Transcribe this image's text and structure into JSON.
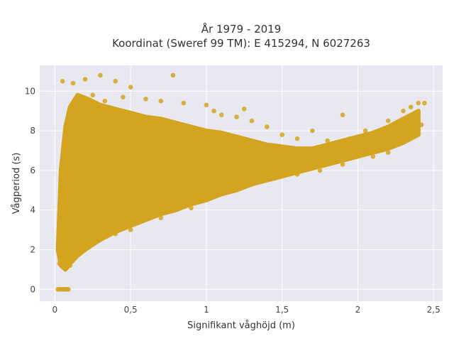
{
  "chart_data": {
    "type": "scatter",
    "title_line1": "År 1979 - 2019",
    "title_line2": "Koordinat (Sweref 99 TM): E 415294, N 6027263",
    "xlabel": "Signifikant våghöjd (m)",
    "ylabel": "Vågperiod (s)",
    "xlim": [
      -0.1,
      2.56
    ],
    "ylim": [
      -0.6,
      11.3
    ],
    "x_ticks": [
      0,
      0.5,
      1,
      1.5,
      2,
      2.5
    ],
    "x_tick_labels": [
      "0",
      "0,5",
      "1",
      "1,5",
      "2",
      "2,5"
    ],
    "y_ticks": [
      0,
      2,
      4,
      6,
      8,
      10
    ],
    "y_tick_labels": [
      "0",
      "2",
      "4",
      "6",
      "8",
      "10"
    ],
    "grid": true,
    "colors": {
      "marker": "#d4a420",
      "plot_bg": "#e8e8f0",
      "grid": "#ffffff"
    },
    "point_cloud_description_free": true,
    "series": [
      {
        "points": [
          [
            0.02,
            0
          ],
          [
            0.03,
            0
          ],
          [
            0.04,
            0
          ],
          [
            0.05,
            0
          ],
          [
            0.06,
            0
          ],
          [
            0.07,
            0
          ],
          [
            0.08,
            0
          ],
          [
            0.09,
            0
          ],
          [
            0.03,
            1.3
          ],
          [
            0.05,
            1.6
          ],
          [
            0.06,
            2.2
          ],
          [
            0.08,
            1.1
          ],
          [
            0.1,
            1.2
          ],
          [
            0.12,
            1.5
          ],
          [
            0.15,
            1.8
          ],
          [
            0.05,
            10.5
          ],
          [
            0.12,
            10.4
          ],
          [
            0.2,
            10.6
          ],
          [
            0.3,
            10.8
          ],
          [
            0.4,
            10.5
          ],
          [
            0.78,
            10.8
          ],
          [
            0.5,
            10.2
          ],
          [
            0.25,
            9.8
          ],
          [
            0.33,
            9.5
          ],
          [
            0.45,
            9.7
          ],
          [
            0.6,
            9.6
          ],
          [
            0.7,
            9.5
          ],
          [
            0.85,
            9.4
          ],
          [
            1.0,
            9.3
          ],
          [
            1.05,
            9.0
          ],
          [
            1.1,
            8.8
          ],
          [
            1.2,
            8.7
          ],
          [
            1.25,
            9.1
          ],
          [
            1.3,
            8.5
          ],
          [
            1.4,
            8.2
          ],
          [
            1.5,
            7.8
          ],
          [
            1.6,
            7.6
          ],
          [
            1.7,
            8.0
          ],
          [
            1.8,
            7.5
          ],
          [
            1.9,
            8.8
          ],
          [
            1.95,
            7.6
          ],
          [
            2.0,
            7.2
          ],
          [
            2.05,
            8.0
          ],
          [
            2.1,
            7.4
          ],
          [
            2.15,
            7.5
          ],
          [
            2.2,
            8.5
          ],
          [
            2.25,
            8.0
          ],
          [
            2.3,
            9.0
          ],
          [
            2.35,
            9.2
          ],
          [
            2.4,
            9.4
          ],
          [
            2.42,
            8.3
          ],
          [
            2.44,
            9.4
          ],
          [
            2.38,
            8.8
          ],
          [
            2.2,
            6.9
          ],
          [
            2.1,
            6.7
          ],
          [
            1.9,
            6.3
          ],
          [
            1.75,
            6.0
          ],
          [
            1.6,
            5.8
          ],
          [
            1.45,
            5.6
          ],
          [
            1.3,
            5.3
          ],
          [
            1.15,
            5.0
          ],
          [
            1.0,
            4.6
          ],
          [
            0.9,
            4.1
          ],
          [
            0.7,
            3.6
          ],
          [
            0.5,
            3.0
          ],
          [
            0.4,
            2.8
          ],
          [
            0.3,
            2.5
          ],
          [
            0.2,
            2.0
          ],
          [
            0.13,
            1.7
          ]
        ]
      }
    ],
    "envelope": {
      "upper": [
        [
          0.02,
          2.0
        ],
        [
          0.04,
          6.0
        ],
        [
          0.07,
          8.2
        ],
        [
          0.1,
          9.2
        ],
        [
          0.15,
          9.8
        ],
        [
          0.22,
          9.6
        ],
        [
          0.3,
          9.3
        ],
        [
          0.4,
          9.1
        ],
        [
          0.5,
          8.9
        ],
        [
          0.6,
          8.7
        ],
        [
          0.7,
          8.6
        ],
        [
          0.8,
          8.4
        ],
        [
          0.9,
          8.2
        ],
        [
          1.0,
          8.0
        ],
        [
          1.1,
          7.9
        ],
        [
          1.2,
          7.7
        ],
        [
          1.3,
          7.5
        ],
        [
          1.4,
          7.3
        ],
        [
          1.5,
          7.2
        ],
        [
          1.6,
          7.1
        ],
        [
          1.7,
          7.1
        ],
        [
          1.8,
          7.3
        ],
        [
          1.9,
          7.5
        ],
        [
          2.0,
          7.7
        ],
        [
          2.1,
          7.9
        ],
        [
          2.2,
          8.2
        ],
        [
          2.3,
          8.6
        ],
        [
          2.4,
          9.0
        ]
      ],
      "lower": [
        [
          0.02,
          2.0
        ],
        [
          0.04,
          1.2
        ],
        [
          0.07,
          1.0
        ],
        [
          0.1,
          1.3
        ],
        [
          0.15,
          1.7
        ],
        [
          0.2,
          2.0
        ],
        [
          0.3,
          2.5
        ],
        [
          0.4,
          2.9
        ],
        [
          0.5,
          3.2
        ],
        [
          0.6,
          3.5
        ],
        [
          0.7,
          3.8
        ],
        [
          0.8,
          4.0
        ],
        [
          0.9,
          4.3
        ],
        [
          1.0,
          4.5
        ],
        [
          1.1,
          4.8
        ],
        [
          1.2,
          5.0
        ],
        [
          1.3,
          5.3
        ],
        [
          1.4,
          5.5
        ],
        [
          1.5,
          5.7
        ],
        [
          1.6,
          5.9
        ],
        [
          1.7,
          6.1
        ],
        [
          1.8,
          6.3
        ],
        [
          1.9,
          6.5
        ],
        [
          2.0,
          6.7
        ],
        [
          2.1,
          6.9
        ],
        [
          2.2,
          7.1
        ],
        [
          2.3,
          7.4
        ],
        [
          2.4,
          7.8
        ]
      ]
    }
  }
}
